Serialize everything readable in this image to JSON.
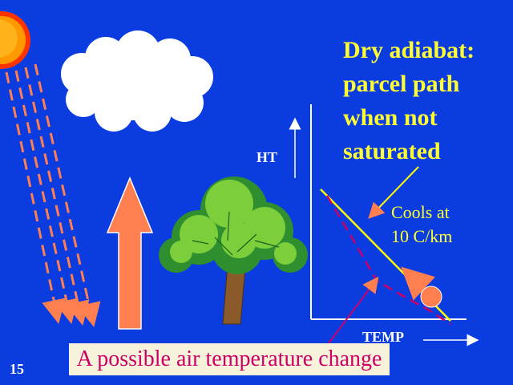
{
  "title": {
    "lines": [
      "Dry adiabat:",
      "parcel path",
      "when not",
      "saturated"
    ]
  },
  "axes": {
    "y_label": "HT",
    "x_label": "TEMP"
  },
  "annotation": {
    "lines": [
      "Cools at",
      "10 C/km"
    ]
  },
  "caption": "A possible air temperature change",
  "slide_number": "15",
  "colors": {
    "background": "#0a3ce0",
    "title": "#ffff33",
    "adiabat_line": "#ffff00",
    "env_profile": "#cc0066",
    "parcel": "#ff7f50",
    "caption_bg": "#f7f2da",
    "caption_text": "#cc0066"
  }
}
